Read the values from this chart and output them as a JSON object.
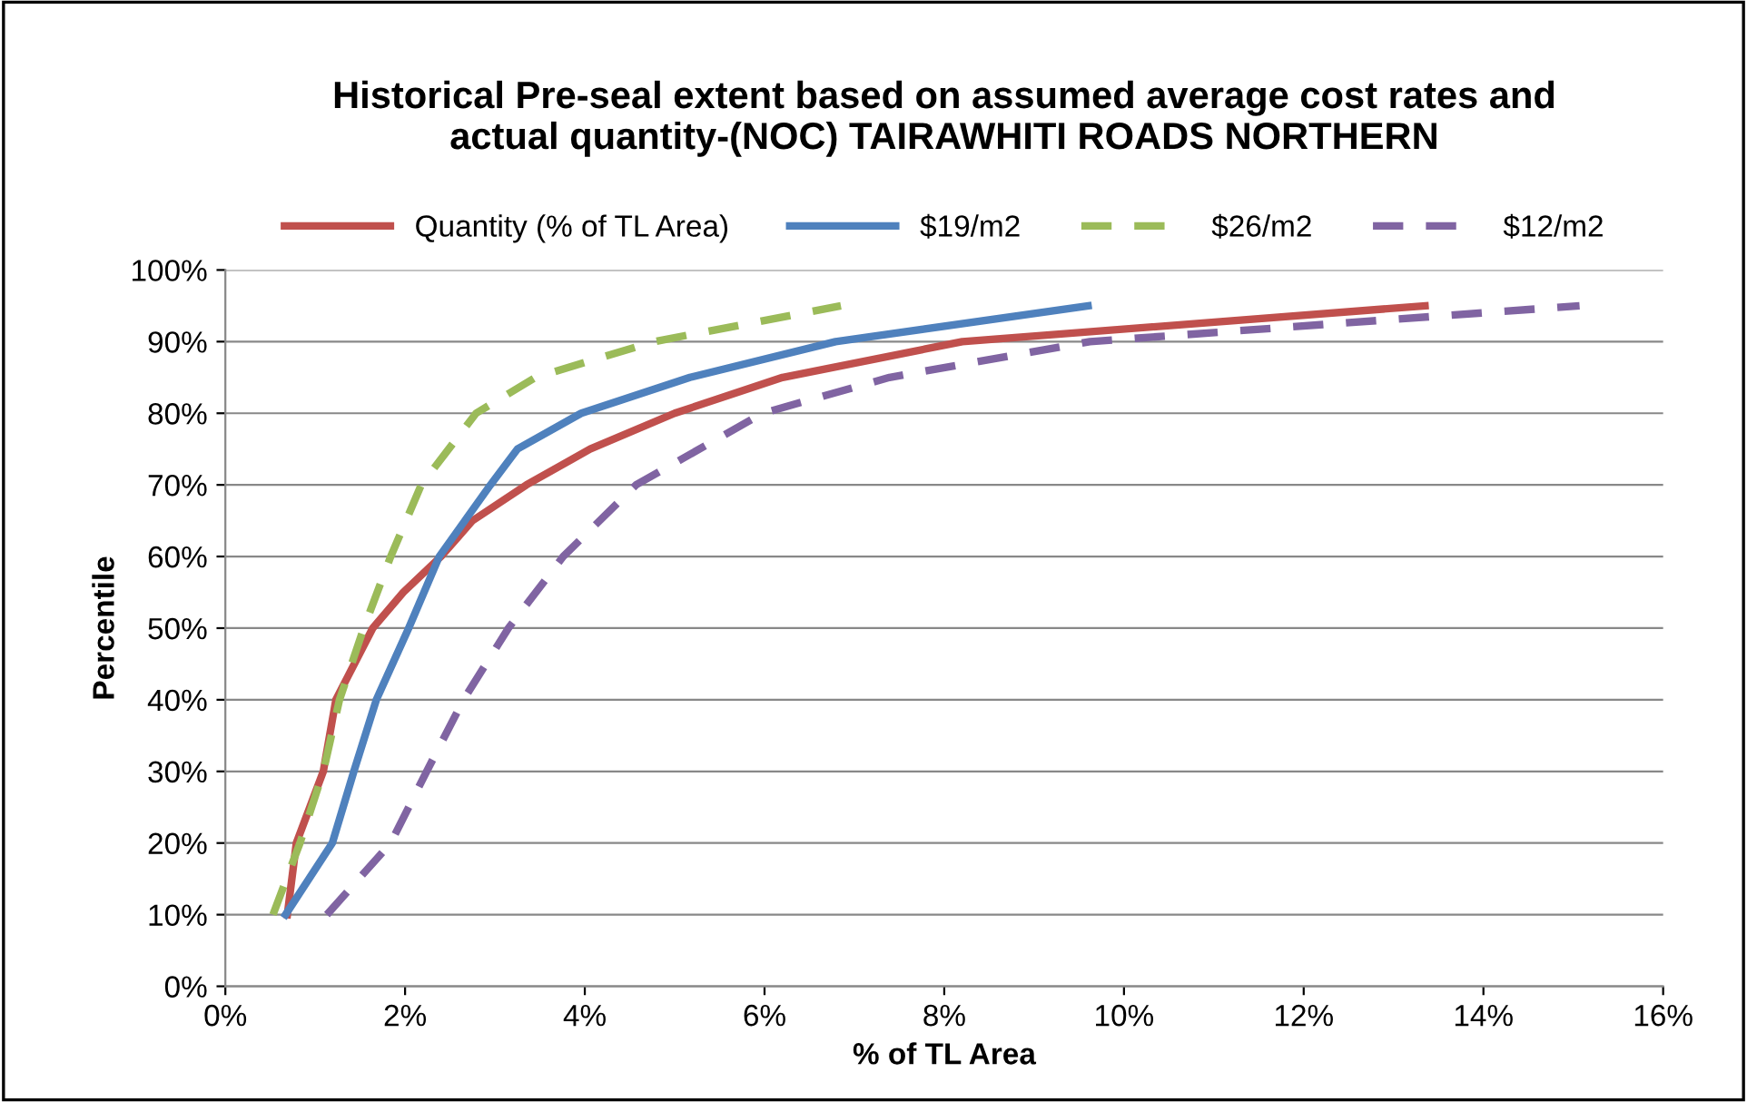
{
  "chart_data": {
    "type": "line",
    "title": "Historical Pre-seal extent based on assumed average cost rates and\nactual quantity-(NOC) TAIRAWHITI ROADS NORTHERN",
    "xlabel": "% of TL Area",
    "ylabel": "Percentile",
    "series": [
      {
        "name": "Quantity (% of TL Area)",
        "color": "#c0504d",
        "line_style": "solid",
        "x": [
          0.69,
          0.79,
          1.09,
          1.23,
          1.64,
          1.98,
          2.4,
          2.75,
          3.35,
          4.06,
          5.0,
          6.2,
          8.2,
          13.35
        ],
        "values": [
          10,
          20,
          30,
          40,
          50,
          55,
          60,
          65,
          70,
          75,
          80,
          85,
          90,
          95
        ]
      },
      {
        "name": "$19/m2",
        "color": "#4f81bd",
        "line_style": "solid",
        "x": [
          0.67,
          1.19,
          1.43,
          1.68,
          2.04,
          2.38,
          2.95,
          3.25,
          3.96,
          5.17,
          6.79,
          9.6
        ],
        "values": [
          10,
          20,
          30,
          40,
          50,
          60,
          70,
          75,
          80,
          85,
          90,
          95
        ]
      },
      {
        "name": "$26/m2",
        "color": "#9bbb59",
        "line_style": "dashed",
        "x": [
          0.53,
          0.83,
          1.09,
          1.27,
          1.54,
          1.84,
          2.18,
          2.79,
          3.45,
          4.77,
          6.85
        ],
        "values": [
          10,
          20,
          30,
          40,
          50,
          60,
          70,
          80,
          85,
          90,
          95
        ]
      },
      {
        "name": "$12/m2",
        "color": "#8064a2",
        "line_style": "dashed",
        "x": [
          1.13,
          1.84,
          2.24,
          2.65,
          3.15,
          3.76,
          4.57,
          5.98,
          7.39,
          9.62,
          15.07
        ],
        "values": [
          10,
          20,
          30,
          40,
          50,
          60,
          70,
          80,
          85,
          90,
          95
        ]
      }
    ],
    "xlim": [
      0,
      16
    ],
    "xticks": [
      {
        "value": 0,
        "label": "0%"
      },
      {
        "value": 2,
        "label": "2%"
      },
      {
        "value": 4,
        "label": "4%"
      },
      {
        "value": 6,
        "label": "6%"
      },
      {
        "value": 8,
        "label": "8%"
      },
      {
        "value": 10,
        "label": "10%"
      },
      {
        "value": 12,
        "label": "12%"
      },
      {
        "value": 14,
        "label": "14%"
      },
      {
        "value": 16,
        "label": "16%"
      }
    ],
    "ylim": [
      0,
      100
    ],
    "yticks": [
      {
        "value": 0,
        "label": "0%"
      },
      {
        "value": 10,
        "label": "10%"
      },
      {
        "value": 20,
        "label": "20%"
      },
      {
        "value": 30,
        "label": "30%"
      },
      {
        "value": 40,
        "label": "40%"
      },
      {
        "value": 50,
        "label": "50%"
      },
      {
        "value": 60,
        "label": "60%"
      },
      {
        "value": 70,
        "label": "70%"
      },
      {
        "value": 80,
        "label": "80%"
      },
      {
        "value": 90,
        "label": "90%"
      },
      {
        "value": 100,
        "label": "100%"
      }
    ],
    "grid": "y",
    "legend": "top",
    "marker": "none"
  }
}
